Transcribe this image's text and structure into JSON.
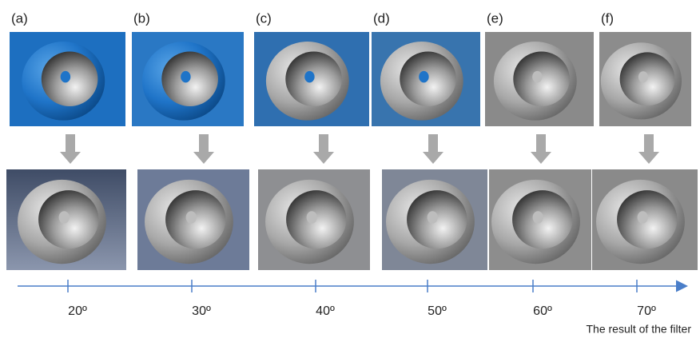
{
  "panels": [
    {
      "label": "(a)",
      "angle": "20º"
    },
    {
      "label": "(b)",
      "angle": "30º"
    },
    {
      "label": "(c)",
      "angle": "40º"
    },
    {
      "label": "(d)",
      "angle": "50º"
    },
    {
      "label": "(e)",
      "angle": "60º"
    },
    {
      "label": "(f)",
      "angle": "70º"
    }
  ],
  "axis_caption": "The result of the filter"
}
